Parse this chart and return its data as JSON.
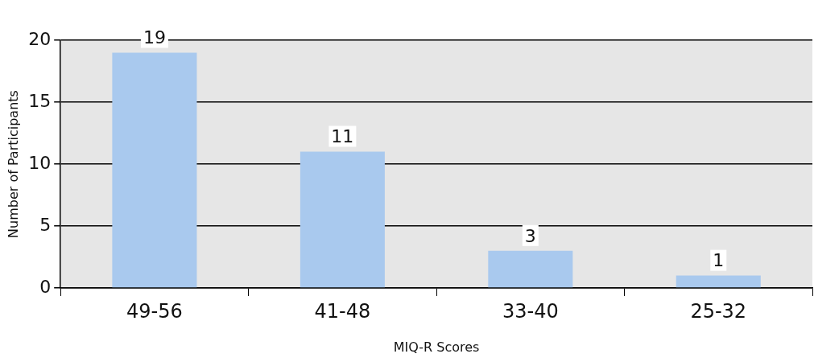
{
  "chart_data": {
    "type": "bar",
    "xlabel": "MIQ-R Scores",
    "ylabel": "Number of Participants",
    "categories": [
      "49-56",
      "41-48",
      "33-40",
      "25-32"
    ],
    "values": [
      19,
      11,
      3,
      1
    ],
    "color": "#a9c9ee",
    "ylim": [
      0,
      20
    ],
    "yticks": [
      0,
      5,
      10,
      15,
      20
    ],
    "grid": "y",
    "data_labels": true
  }
}
